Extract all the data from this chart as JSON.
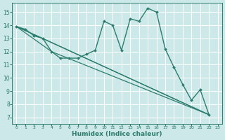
{
  "title": "",
  "xlabel": "Humidex (Indice chaleur)",
  "ylabel": "",
  "bg_color": "#cce8e8",
  "grid_color": "#ffffff",
  "line_color": "#2d7d6e",
  "xlim": [
    -0.5,
    23.5
  ],
  "ylim": [
    6.5,
    15.7
  ],
  "yticks": [
    7,
    8,
    9,
    10,
    11,
    12,
    13,
    14,
    15
  ],
  "xticks": [
    0,
    1,
    2,
    3,
    4,
    5,
    6,
    7,
    8,
    9,
    10,
    11,
    12,
    13,
    14,
    15,
    16,
    17,
    18,
    19,
    20,
    21,
    22,
    23
  ],
  "lines": [
    {
      "x": [
        0,
        1,
        2,
        3,
        4,
        5,
        6,
        7,
        8,
        9,
        10,
        11,
        12,
        13,
        14,
        15,
        16,
        17,
        18,
        19,
        20,
        21,
        22
      ],
      "y": [
        13.9,
        13.7,
        13.2,
        13.0,
        12.0,
        11.5,
        11.5,
        11.5,
        11.8,
        12.1,
        14.3,
        14.0,
        12.1,
        14.5,
        14.3,
        15.3,
        15.0,
        12.2,
        10.8,
        9.5,
        8.3,
        9.1,
        7.2
      ],
      "marker": "D",
      "markersize": 2.0,
      "linewidth": 1.0
    },
    {
      "x": [
        0,
        22
      ],
      "y": [
        13.9,
        7.2
      ],
      "marker": null,
      "markersize": 0,
      "linewidth": 0.9
    },
    {
      "x": [
        0,
        4,
        22
      ],
      "y": [
        13.9,
        12.0,
        7.2
      ],
      "marker": null,
      "markersize": 0,
      "linewidth": 0.9
    },
    {
      "x": [
        0,
        3,
        22
      ],
      "y": [
        13.9,
        13.0,
        7.2
      ],
      "marker": null,
      "markersize": 0,
      "linewidth": 0.9
    }
  ]
}
